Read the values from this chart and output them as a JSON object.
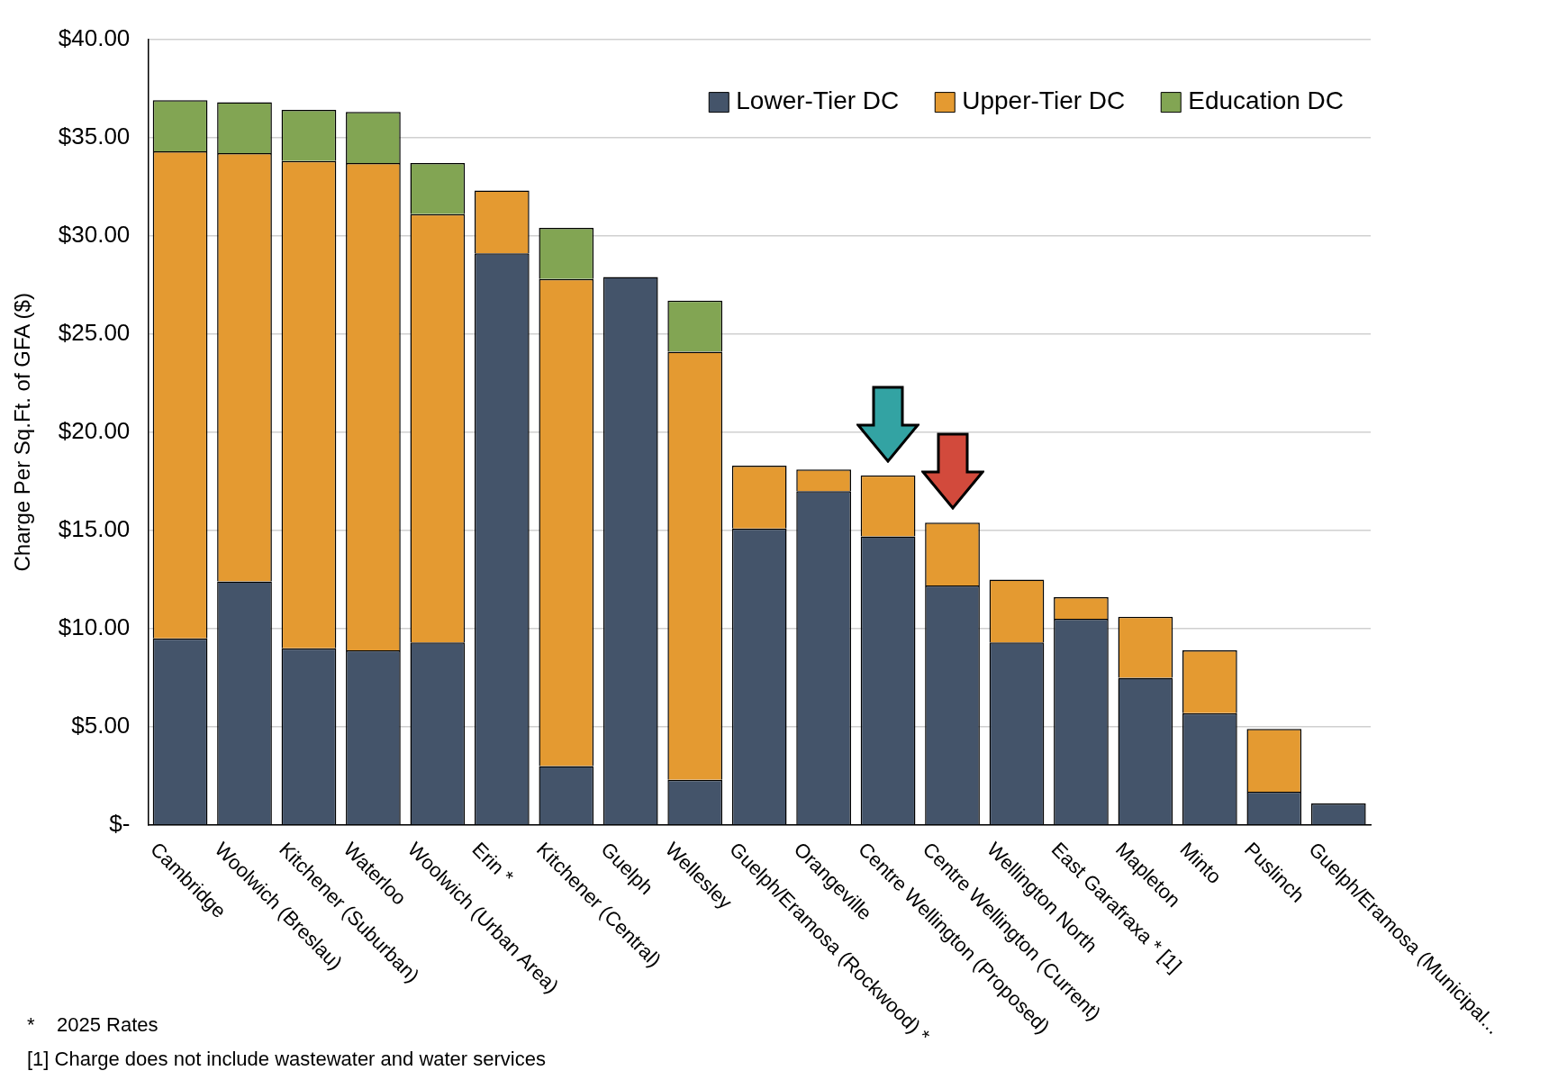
{
  "chart_data": {
    "type": "bar",
    "stacked": true,
    "ylabel": "Charge Per Sq.Ft. of GFA ($)",
    "categories": [
      "Cambridge",
      "Woolwich (Breslau)",
      "Kitchener (Suburban)",
      "Waterloo",
      "Woolwich (Urban Area)",
      "Erin *",
      "Kitchener (Central)",
      "Guelph",
      "Wellesley",
      "Guelph/Eramosa (Rockwood) *",
      "Orangeville",
      "Centre Wellington (Proposed)",
      "Centre Wellington (Current)",
      "Wellington North",
      "East Garafraxa * [1]",
      "Mapleton",
      "Minto",
      "Puslinch",
      "Guelph/Eramosa (Municipal..."
    ],
    "series": [
      {
        "name": "Lower-Tier DC",
        "color": "#44546a",
        "values": [
          9.5,
          12.4,
          9.0,
          8.9,
          9.3,
          29.1,
          3.0,
          27.9,
          2.3,
          15.1,
          17.0,
          14.7,
          12.2,
          9.3,
          10.5,
          7.5,
          5.7,
          1.7,
          1.1
        ]
      },
      {
        "name": "Upper-Tier DC",
        "color": "#e49a31",
        "values": [
          24.8,
          21.8,
          24.8,
          24.8,
          21.8,
          3.2,
          24.8,
          null,
          21.8,
          3.2,
          1.1,
          3.1,
          3.2,
          3.2,
          1.1,
          3.1,
          3.2,
          3.2,
          null
        ]
      },
      {
        "name": "Education DC",
        "color": "#82a553",
        "values": [
          2.6,
          2.6,
          2.6,
          2.6,
          2.6,
          null,
          2.6,
          null,
          2.6,
          null,
          null,
          null,
          null,
          null,
          null,
          null,
          null,
          null,
          null
        ]
      }
    ],
    "ylim": [
      0,
      40
    ],
    "yticks": [
      {
        "value": 0,
        "label": "$-"
      },
      {
        "value": 5,
        "label": "$5.00"
      },
      {
        "value": 10,
        "label": "$10.00"
      },
      {
        "value": 15,
        "label": "$15.00"
      },
      {
        "value": 20,
        "label": "$20.00"
      },
      {
        "value": 25,
        "label": "$25.00"
      },
      {
        "value": 30,
        "label": "$30.00"
      },
      {
        "value": 35,
        "label": "$35.00"
      },
      {
        "value": 40,
        "label": "$40.00"
      }
    ],
    "grid": "y",
    "legend": "top right",
    "annotations": [
      "*    2025 Rates",
      "[1] Charge does not include wastewater and water services"
    ]
  }
}
